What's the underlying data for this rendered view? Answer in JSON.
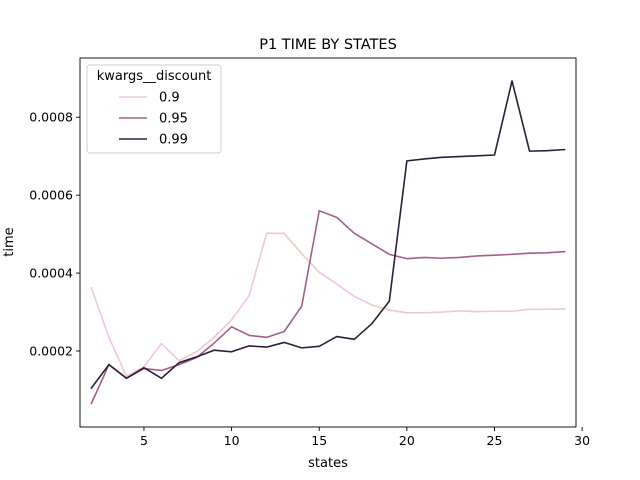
{
  "chart_data": {
    "type": "line",
    "title": "P1 TIME BY STATES",
    "xlabel": "states",
    "ylabel": "time",
    "xlim": [
      1.35,
      29.65
    ],
    "ylim": [
      4.9e-06,
      0.000952
    ],
    "xticks": [
      5,
      10,
      15,
      20,
      25,
      30
    ],
    "yticks": [
      0.0002,
      0.0004,
      0.0006,
      0.0008
    ],
    "ytick_labels": [
      "0.0002",
      "0.0004",
      "0.0006",
      "0.0008"
    ],
    "grid": false,
    "legend": {
      "title": "kwargs__discount",
      "placement": "top-left"
    },
    "x": [
      2,
      3,
      4,
      5,
      6,
      7,
      8,
      9,
      10,
      11,
      12,
      13,
      14,
      15,
      16,
      17,
      18,
      19,
      20,
      21,
      22,
      23,
      24,
      25,
      26,
      27,
      28,
      29
    ],
    "series": [
      {
        "name": "0.9",
        "color": "#f0c9c8",
        "values": [
          0.000362,
          0.000235,
          0.000135,
          0.00016,
          0.000219,
          0.000175,
          0.000198,
          0.000235,
          0.00028,
          0.000342,
          0.000502,
          0.000502,
          0.00045,
          0.000402,
          0.000372,
          0.00034,
          0.000318,
          0.000305,
          0.000298,
          0.000298,
          0.0003,
          0.000303,
          0.000301,
          0.000302,
          0.000302,
          0.000307,
          0.000307,
          0.000308
        ]
      },
      {
        "name": "0.95",
        "color": "#a65f88",
        "values": [
          6.55e-05,
          0.000165,
          0.00013,
          0.000155,
          0.00015,
          0.000165,
          0.000183,
          0.00022,
          0.000262,
          0.00024,
          0.000235,
          0.00025,
          0.000315,
          0.00056,
          0.000543,
          0.000502,
          0.000475,
          0.000448,
          0.000437,
          0.00044,
          0.000438,
          0.00044,
          0.000444,
          0.000446,
          0.000448,
          0.000451,
          0.000452,
          0.000455
        ]
      },
      {
        "name": "0.99",
        "color": "#2e1e3b",
        "values": [
          0.000105,
          0.000165,
          0.00013,
          0.000157,
          0.00013,
          0.00017,
          0.000185,
          0.000202,
          0.000198,
          0.000213,
          0.00021,
          0.000222,
          0.000208,
          0.000212,
          0.000237,
          0.00023,
          0.00027,
          0.000328,
          0.000688,
          0.000693,
          0.000697,
          0.000699,
          0.000701,
          0.000703,
          0.000893,
          0.000713,
          0.000714,
          0.000717
        ]
      }
    ]
  }
}
